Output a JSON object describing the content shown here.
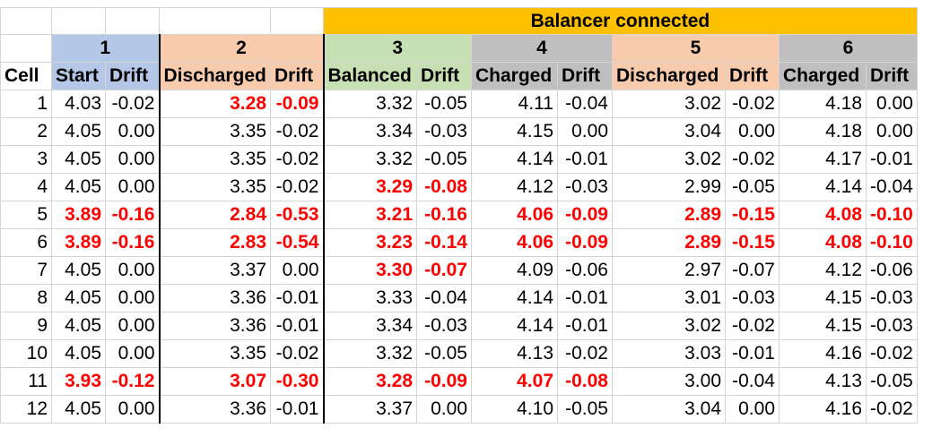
{
  "banner": "Balancer connected",
  "groups": [
    "1",
    "2",
    "3",
    "4",
    "5",
    "6"
  ],
  "header": {
    "cell": "Cell",
    "cols": [
      "Start",
      "Drift",
      "Discharged",
      "Drift",
      "Balanced",
      "Drift",
      "Charged",
      "Drift",
      "Discharged",
      "Drift",
      "Charged",
      "Drift"
    ]
  },
  "colors": {
    "highlight": "#ff0000",
    "banner": "#ffc000",
    "g1": "#b4c7e7",
    "g2": "#f8cbad",
    "g3": "#c6e0b4",
    "g4": "#bfbfbf",
    "g5": "#f8cbad",
    "g6": "#bfbfbf"
  },
  "rows": [
    {
      "cell": "1",
      "vals": [
        "4.03",
        "-0.02",
        "3.28",
        "-0.09",
        "3.32",
        "-0.05",
        "4.11",
        "-0.04",
        "3.02",
        "-0.02",
        "4.18",
        "0.00"
      ],
      "red": [
        false,
        true,
        false,
        false,
        false,
        false
      ]
    },
    {
      "cell": "2",
      "vals": [
        "4.05",
        "0.00",
        "3.35",
        "-0.02",
        "3.34",
        "-0.03",
        "4.15",
        "0.00",
        "3.04",
        "0.00",
        "4.18",
        "0.00"
      ],
      "red": [
        false,
        false,
        false,
        false,
        false,
        false
      ]
    },
    {
      "cell": "3",
      "vals": [
        "4.05",
        "0.00",
        "3.35",
        "-0.02",
        "3.32",
        "-0.05",
        "4.14",
        "-0.01",
        "3.02",
        "-0.02",
        "4.17",
        "-0.01"
      ],
      "red": [
        false,
        false,
        false,
        false,
        false,
        false
      ]
    },
    {
      "cell": "4",
      "vals": [
        "4.05",
        "0.00",
        "3.35",
        "-0.02",
        "3.29",
        "-0.08",
        "4.12",
        "-0.03",
        "2.99",
        "-0.05",
        "4.14",
        "-0.04"
      ],
      "red": [
        false,
        false,
        true,
        false,
        false,
        false
      ]
    },
    {
      "cell": "5",
      "vals": [
        "3.89",
        "-0.16",
        "2.84",
        "-0.53",
        "3.21",
        "-0.16",
        "4.06",
        "-0.09",
        "2.89",
        "-0.15",
        "4.08",
        "-0.10"
      ],
      "red": [
        true,
        true,
        true,
        true,
        true,
        true
      ]
    },
    {
      "cell": "6",
      "vals": [
        "3.89",
        "-0.16",
        "2.83",
        "-0.54",
        "3.23",
        "-0.14",
        "4.06",
        "-0.09",
        "2.89",
        "-0.15",
        "4.08",
        "-0.10"
      ],
      "red": [
        true,
        true,
        true,
        true,
        true,
        true
      ]
    },
    {
      "cell": "7",
      "vals": [
        "4.05",
        "0.00",
        "3.37",
        "0.00",
        "3.30",
        "-0.07",
        "4.09",
        "-0.06",
        "2.97",
        "-0.07",
        "4.12",
        "-0.06"
      ],
      "red": [
        false,
        false,
        true,
        false,
        false,
        false
      ]
    },
    {
      "cell": "8",
      "vals": [
        "4.05",
        "0.00",
        "3.36",
        "-0.01",
        "3.33",
        "-0.04",
        "4.14",
        "-0.01",
        "3.01",
        "-0.03",
        "4.15",
        "-0.03"
      ],
      "red": [
        false,
        false,
        false,
        false,
        false,
        false
      ]
    },
    {
      "cell": "9",
      "vals": [
        "4.05",
        "0.00",
        "3.36",
        "-0.01",
        "3.34",
        "-0.03",
        "4.14",
        "-0.01",
        "3.02",
        "-0.02",
        "4.15",
        "-0.03"
      ],
      "red": [
        false,
        false,
        false,
        false,
        false,
        false
      ]
    },
    {
      "cell": "10",
      "vals": [
        "4.05",
        "0.00",
        "3.35",
        "-0.02",
        "3.32",
        "-0.05",
        "4.13",
        "-0.02",
        "3.03",
        "-0.01",
        "4.16",
        "-0.02"
      ],
      "red": [
        false,
        false,
        false,
        false,
        false,
        false
      ]
    },
    {
      "cell": "11",
      "vals": [
        "3.93",
        "-0.12",
        "3.07",
        "-0.30",
        "3.28",
        "-0.09",
        "4.07",
        "-0.08",
        "3.00",
        "-0.04",
        "4.13",
        "-0.05"
      ],
      "red": [
        true,
        true,
        true,
        true,
        false,
        false
      ]
    },
    {
      "cell": "12",
      "vals": [
        "4.05",
        "0.00",
        "3.36",
        "-0.01",
        "3.37",
        "0.00",
        "4.10",
        "-0.05",
        "3.04",
        "0.00",
        "4.16",
        "-0.02"
      ],
      "red": [
        false,
        false,
        false,
        false,
        false,
        false
      ]
    }
  ]
}
